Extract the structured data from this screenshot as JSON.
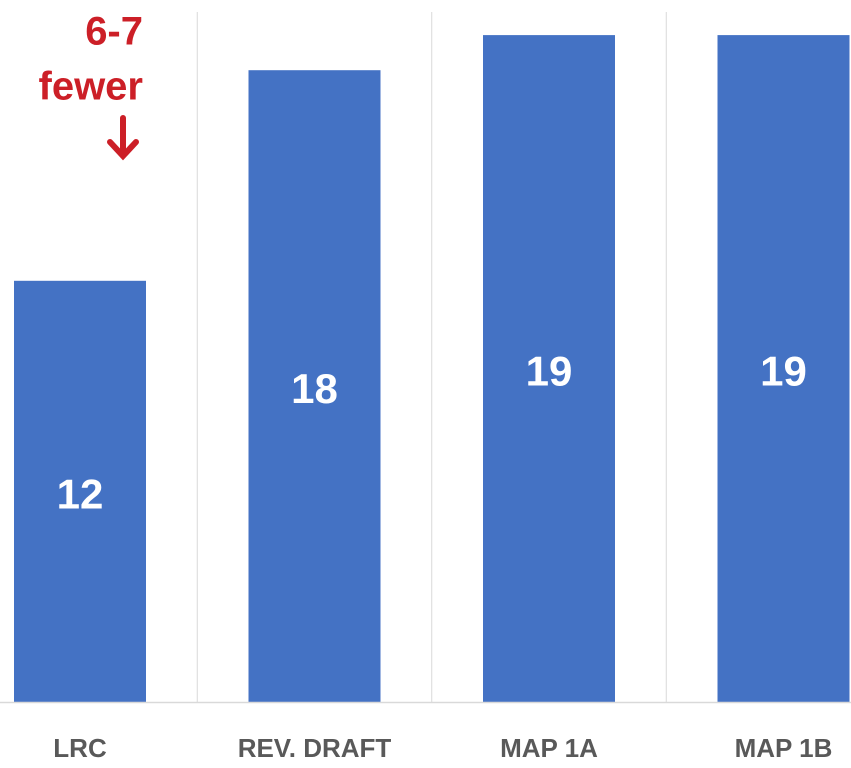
{
  "chart_data": {
    "type": "bar",
    "categories": [
      "LRC",
      "REV. DRAFT",
      "MAP 1A",
      "MAP 1B"
    ],
    "values": [
      12,
      18,
      19,
      19
    ],
    "color": "#4472c4",
    "ylim": [
      0,
      20
    ],
    "annotation": [
      "6-7",
      "fewer"
    ],
    "annotation_color": "#cc1f27",
    "grid": true
  }
}
